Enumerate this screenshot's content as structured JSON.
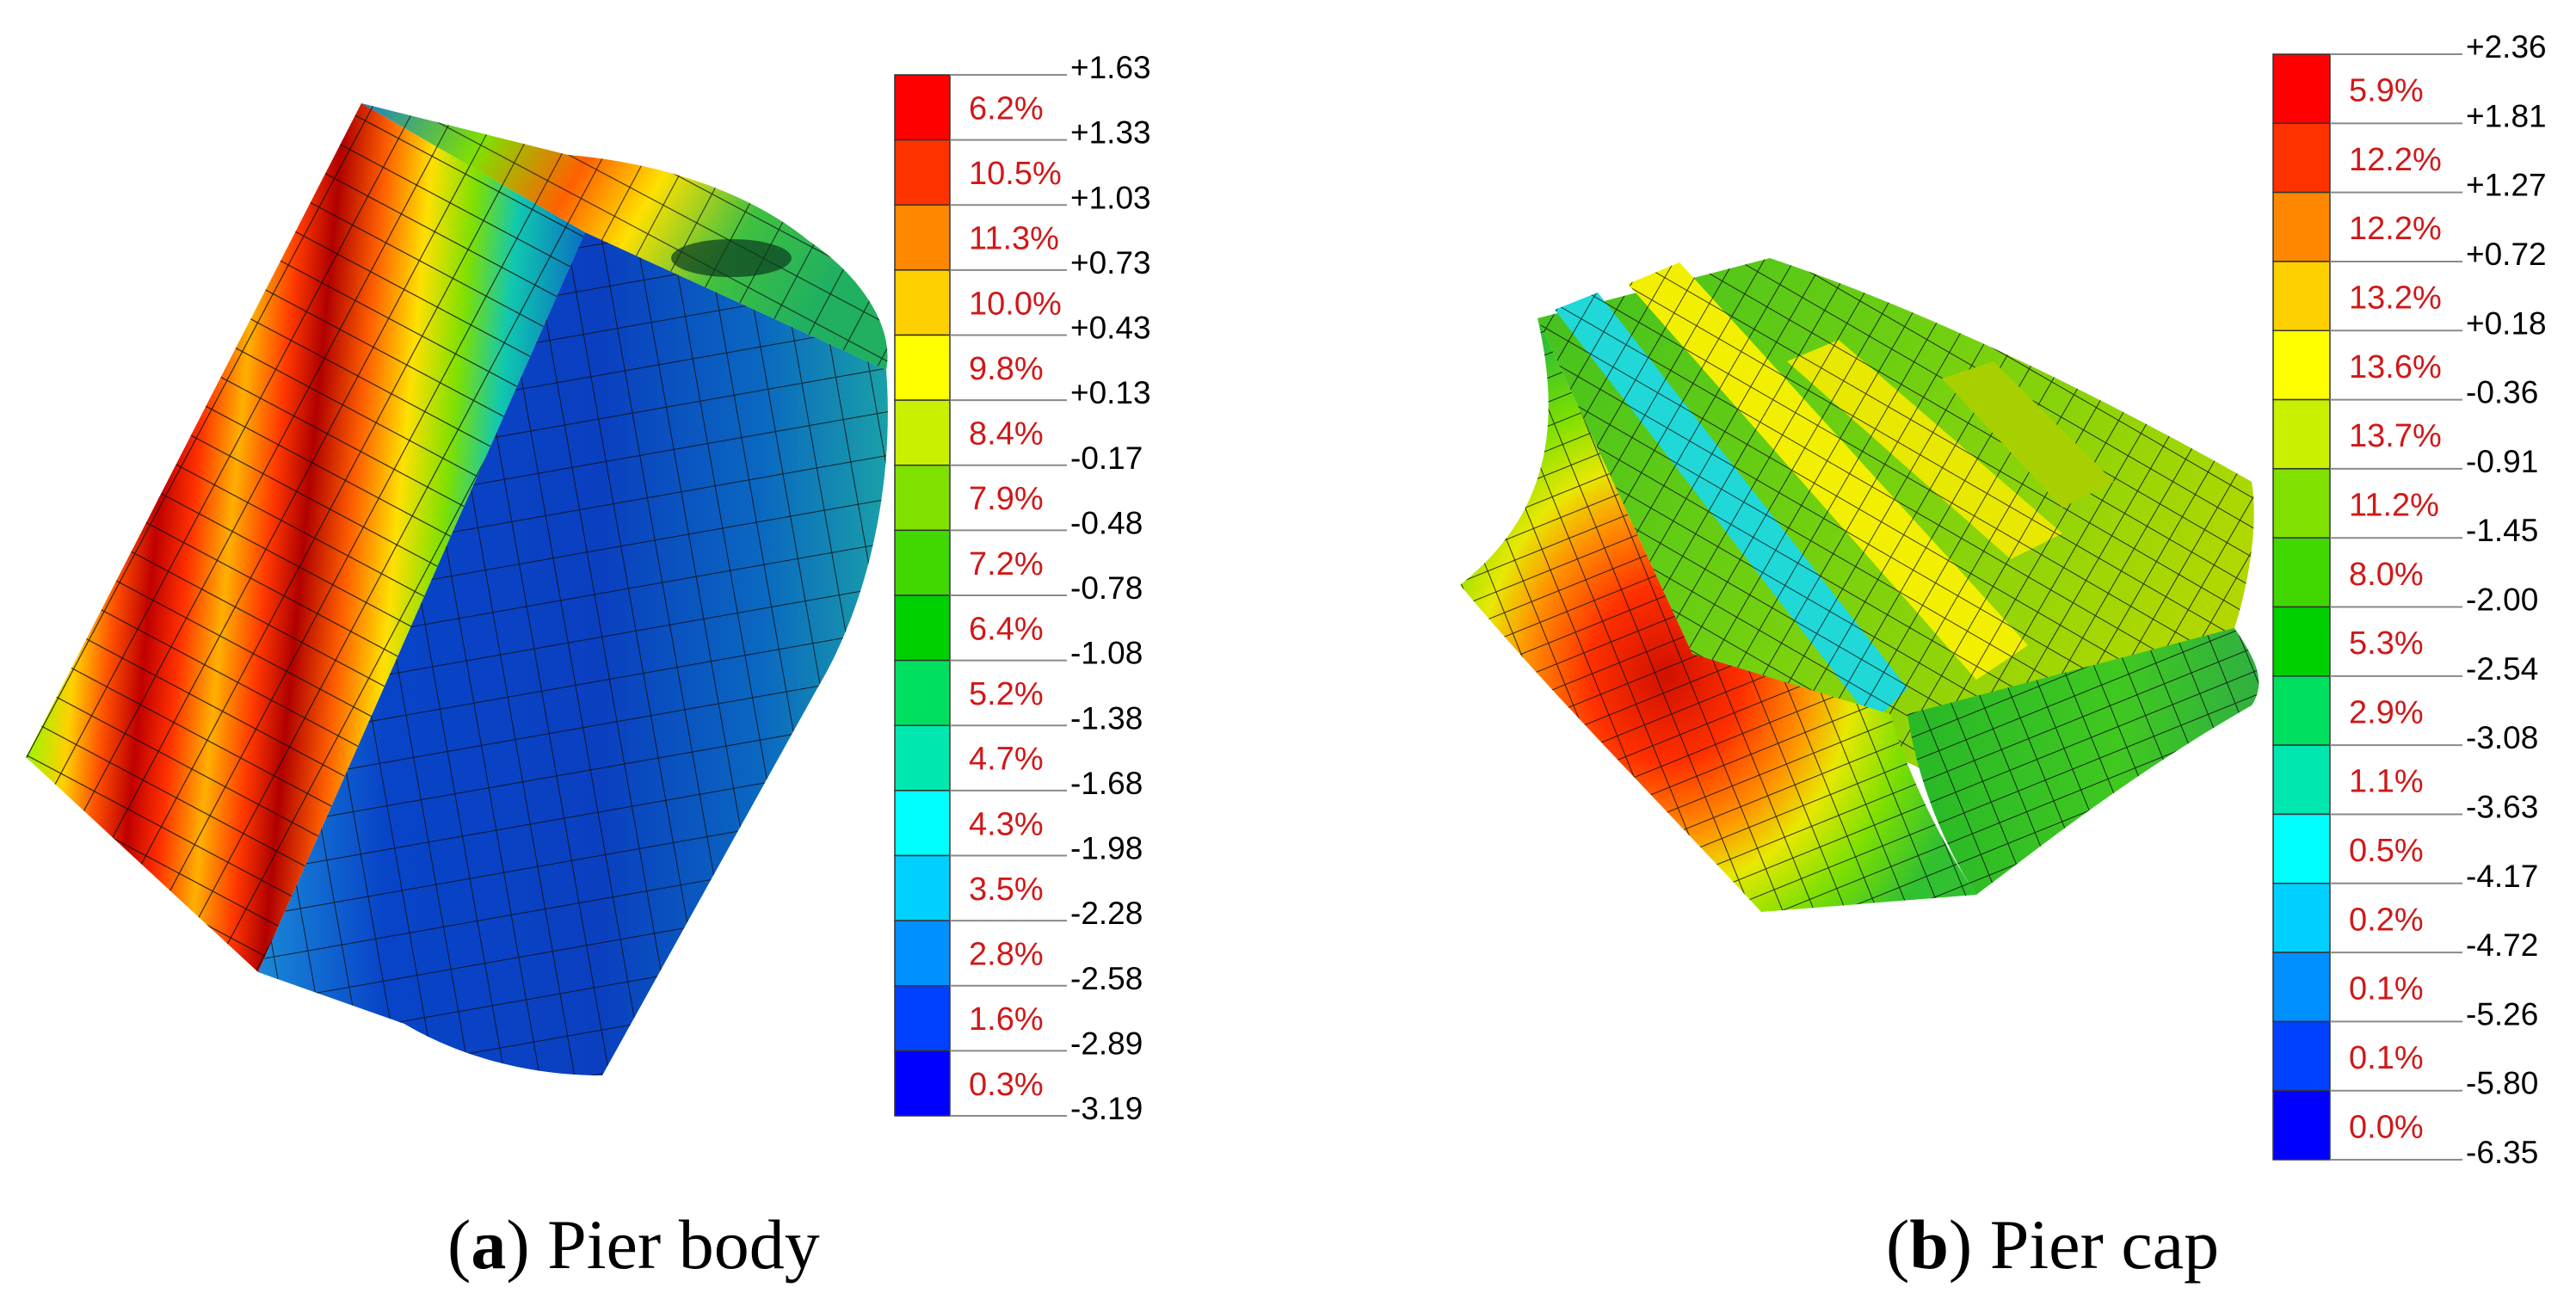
{
  "panels": [
    {
      "id": "a",
      "caption_letter": "a",
      "caption_text": "Pier body",
      "legend": {
        "boundaries": [
          "+1.63",
          "+1.33",
          "+1.03",
          "+0.73",
          "+0.43",
          "+0.13",
          "-0.17",
          "-0.48",
          "-0.78",
          "-1.08",
          "-1.38",
          "-1.68",
          "-1.98",
          "-2.28",
          "-2.58",
          "-2.89",
          "-3.19"
        ],
        "percents": [
          "6.2%",
          "10.5%",
          "11.3%",
          "10.0%",
          "9.8%",
          "8.4%",
          "7.9%",
          "7.2%",
          "6.4%",
          "5.2%",
          "4.7%",
          "4.3%",
          "3.5%",
          "2.8%",
          "1.6%",
          "0.3%"
        ],
        "colors": [
          "#ff0000",
          "#ff3300",
          "#ff8800",
          "#ffd000",
          "#ffff00",
          "#c8f000",
          "#80e000",
          "#40d800",
          "#00d000",
          "#00e060",
          "#00e8b0",
          "#00ffff",
          "#00d0ff",
          "#0090ff",
          "#0040ff",
          "#0000ff"
        ]
      }
    },
    {
      "id": "b",
      "caption_letter": "b",
      "caption_text": "Pier cap",
      "legend": {
        "boundaries": [
          "+2.36",
          "+1.81",
          "+1.27",
          "+0.72",
          "+0.18",
          "-0.36",
          "-0.91",
          "-1.45",
          "-2.00",
          "-2.54",
          "-3.08",
          "-3.63",
          "-4.17",
          "-4.72",
          "-5.26",
          "-5.80",
          "-6.35"
        ],
        "percents": [
          "5.9%",
          "12.2%",
          "12.2%",
          "13.2%",
          "13.6%",
          "13.7%",
          "11.2%",
          "8.0%",
          "5.3%",
          "2.9%",
          "1.1%",
          "0.5%",
          "0.2%",
          "0.1%",
          "0.1%",
          "0.0%"
        ],
        "colors": [
          "#ff0000",
          "#ff3300",
          "#ff8800",
          "#ffd000",
          "#ffff00",
          "#c8f000",
          "#80e000",
          "#40d800",
          "#00d000",
          "#00e060",
          "#00e8b0",
          "#00ffff",
          "#00d0ff",
          "#0090ff",
          "#0040ff",
          "#0000ff"
        ]
      }
    }
  ]
}
